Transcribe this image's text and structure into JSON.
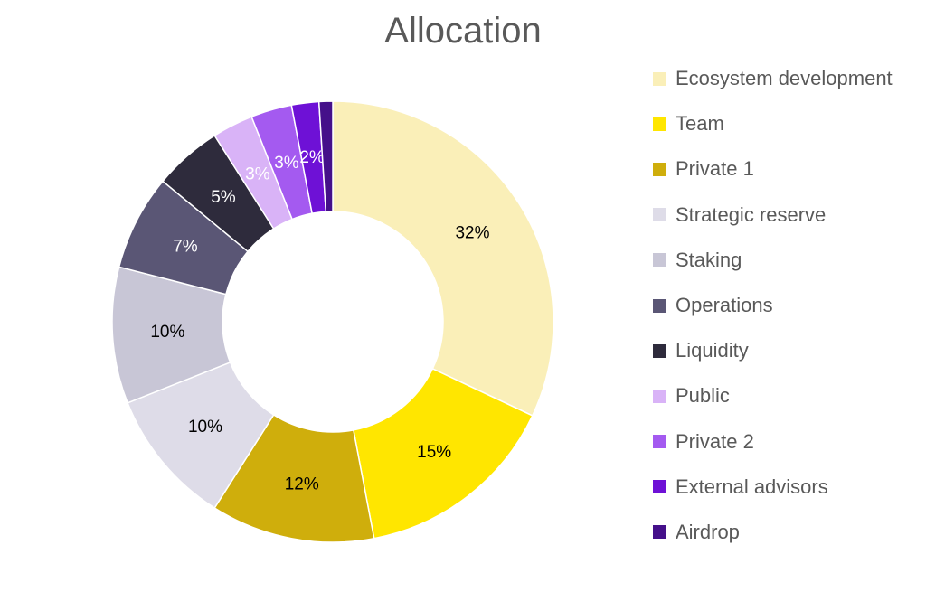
{
  "chart_data": {
    "type": "pie",
    "variant": "donut",
    "title": "Allocation",
    "legend_position": "right",
    "categories": [
      "Ecosystem development",
      "Team",
      "Private 1",
      "Strategic reserve",
      "Staking",
      "Operations",
      "Liquidity",
      "Public",
      "Private 2",
      "External advisors",
      "Airdrop"
    ],
    "values": [
      32,
      15,
      12,
      10,
      10,
      7,
      5,
      3,
      3,
      2,
      1
    ],
    "data_labels": [
      "32%",
      "15%",
      "12%",
      "10%",
      "10%",
      "7%",
      "5%",
      "3%",
      "3%",
      "2%",
      ""
    ],
    "colors": [
      "#FAEFB8",
      "#FFE600",
      "#CFAE0C",
      "#DEDCE8",
      "#C8C6D6",
      "#5A5675",
      "#2E2B3C",
      "#D9B3F7",
      "#A45AF0",
      "#6E11D6",
      "#45108A"
    ],
    "label_colors": [
      "#000000",
      "#000000",
      "#000000",
      "#000000",
      "#000000",
      "#ffffff",
      "#ffffff",
      "#ffffff",
      "#ffffff",
      "#ffffff",
      "#ffffff"
    ]
  }
}
